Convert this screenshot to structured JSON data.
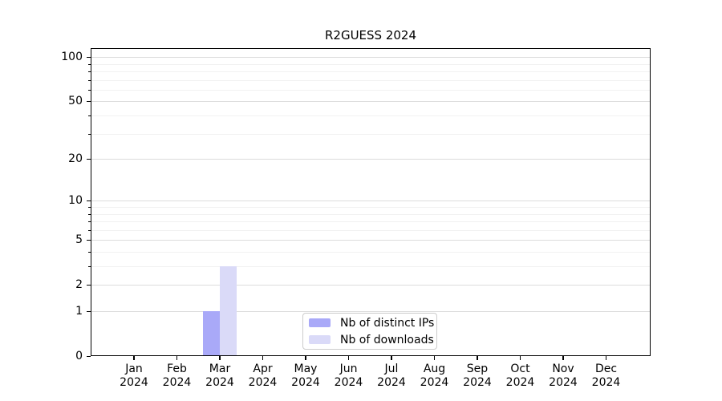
{
  "chart_data": {
    "type": "bar",
    "title": "R2GUESS 2024",
    "categories": [
      "Jan 2024",
      "Feb 2024",
      "Mar 2024",
      "Apr 2024",
      "May 2024",
      "Jun 2024",
      "Jul 2024",
      "Aug 2024",
      "Sep 2024",
      "Oct 2024",
      "Nov 2024",
      "Dec 2024"
    ],
    "series": [
      {
        "name": "Nb of distinct IPs",
        "color": "#a9a9f8",
        "values": [
          0,
          0,
          1,
          0,
          0,
          0,
          0,
          0,
          0,
          0,
          0,
          0
        ]
      },
      {
        "name": "Nb of downloads",
        "color": "#dadaf8",
        "values": [
          0,
          0,
          3,
          0,
          0,
          0,
          0,
          0,
          0,
          0,
          0,
          0
        ]
      }
    ],
    "xlabel": "",
    "ylabel": "",
    "yscale": "log1p",
    "ylim": [
      0,
      115
    ],
    "y_major_ticks": [
      0,
      1,
      2,
      5,
      10,
      20,
      50,
      100
    ],
    "y_minor_ticks": [
      3,
      4,
      6,
      7,
      8,
      9,
      30,
      40,
      60,
      70,
      80,
      90
    ],
    "grid": "horizontal",
    "legend_position": "inside-lower-center"
  }
}
